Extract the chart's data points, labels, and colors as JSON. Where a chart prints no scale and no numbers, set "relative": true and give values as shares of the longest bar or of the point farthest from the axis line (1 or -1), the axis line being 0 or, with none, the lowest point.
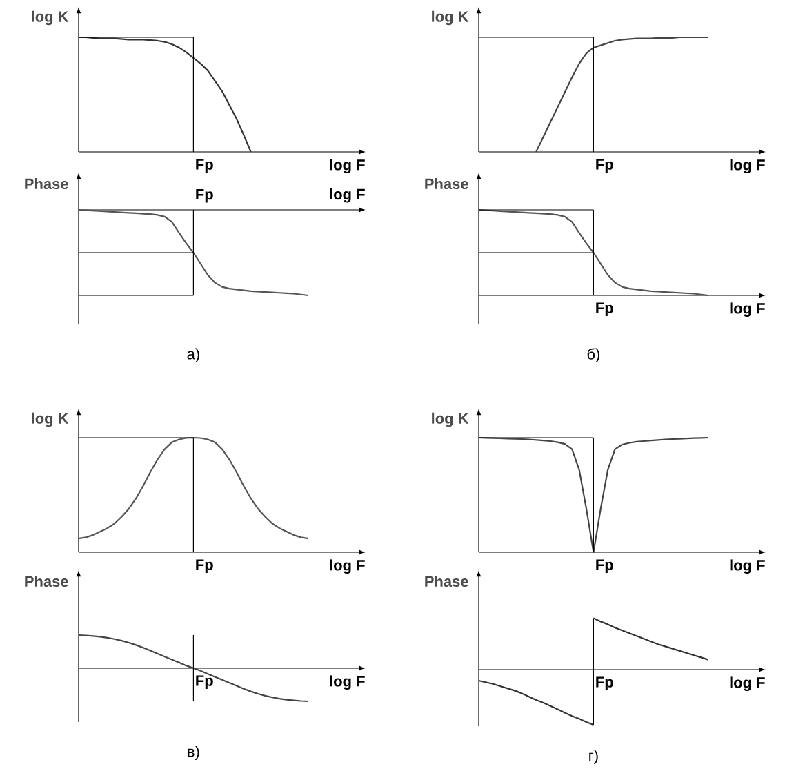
{
  "chart_data": [
    {
      "type": "line",
      "relative": true,
      "ylabel": "log K",
      "xlabel": "log F",
      "annotations": [
        "Fp"
      ],
      "categories": [
        null,
        null,
        null,
        null,
        null,
        null,
        null,
        null,
        null,
        null,
        null,
        null,
        null,
        null,
        null,
        null,
        null,
        null,
        null,
        null,
        null,
        null,
        null,
        null,
        null,
        null,
        null,
        null,
        null,
        null,
        null,
        null,
        null
      ],
      "ref_lines": [
        {
          "axis": "y",
          "value": 1
        }
      ],
      "series": [
        {
          "color": "#333333",
          "values": [
            1.0,
            1.0,
            0.995,
            0.99,
            0.99,
            0.99,
            0.985,
            0.98,
            0.98,
            0.98,
            0.975,
            0.97,
            0.96,
            0.94,
            0.91,
            0.87,
            0.82,
            0.77,
            0.71,
            0.62,
            0.53,
            0.41,
            0.29,
            0.15,
            0.0,
            null,
            null,
            null,
            null,
            null,
            null,
            null,
            null
          ]
        }
      ]
    },
    {
      "type": "line",
      "relative": true,
      "ylabel": "Phase",
      "xlabel": "log F",
      "annotations": [
        "Fp",
        "а)"
      ],
      "categories": [
        null,
        null,
        null,
        null,
        null,
        null,
        null,
        null,
        null,
        null,
        null,
        null,
        null,
        null,
        null,
        null,
        null,
        null,
        null,
        null,
        null,
        null,
        null,
        null,
        null,
        null,
        null,
        null,
        null,
        null,
        null,
        null,
        null
      ],
      "ref_lines": [
        {
          "axis": "y",
          "value": -0.5
        },
        {
          "axis": "y",
          "value": -1
        }
      ],
      "series": [
        {
          "color": "#555555",
          "values": [
            0,
            -0.005,
            -0.01,
            -0.015,
            -0.02,
            -0.025,
            -0.03,
            -0.035,
            -0.04,
            -0.045,
            -0.05,
            -0.06,
            -0.08,
            -0.14,
            -0.27,
            -0.39,
            -0.5,
            -0.63,
            -0.76,
            -0.85,
            -0.9,
            -0.92,
            -0.93,
            -0.94,
            -0.95,
            -0.955,
            -0.96,
            -0.965,
            -0.97,
            -0.975,
            -0.98,
            -0.99,
            -1.0
          ]
        }
      ]
    },
    {
      "type": "line",
      "relative": true,
      "ylabel": "log K",
      "xlabel": "log F",
      "annotations": [
        "Fp"
      ],
      "categories": [
        null,
        null,
        null,
        null,
        null,
        null,
        null,
        null,
        null,
        null,
        null,
        null,
        null,
        null,
        null,
        null,
        null,
        null,
        null,
        null,
        null,
        null,
        null,
        null,
        null,
        null,
        null,
        null,
        null,
        null,
        null,
        null,
        null
      ],
      "ref_lines": [
        {
          "axis": "y",
          "value": 1
        }
      ],
      "series": [
        {
          "color": "#444444",
          "values": [
            null,
            null,
            null,
            null,
            null,
            null,
            null,
            null,
            0,
            0.13,
            0.26,
            0.39,
            0.52,
            0.65,
            0.77,
            0.86,
            0.91,
            0.93,
            0.95,
            0.97,
            0.98,
            0.985,
            0.99,
            0.99,
            0.99,
            0.995,
            0.995,
            0.995,
            1.0,
            1.0,
            1.0,
            1.0,
            1.0
          ]
        }
      ]
    },
    {
      "type": "line",
      "relative": true,
      "ylabel": "Phase",
      "xlabel": "log F",
      "annotations": [
        "Fp",
        "б)"
      ],
      "categories": [
        null,
        null,
        null,
        null,
        null,
        null,
        null,
        null,
        null,
        null,
        null,
        null,
        null,
        null,
        null,
        null,
        null,
        null,
        null,
        null,
        null,
        null,
        null,
        null,
        null,
        null,
        null,
        null,
        null,
        null,
        null,
        null,
        null
      ],
      "ref_lines": [
        {
          "axis": "y",
          "value": 1
        },
        {
          "axis": "y",
          "value": 0.5
        }
      ],
      "series": [
        {
          "color": "#555555",
          "values": [
            1,
            0.995,
            0.99,
            0.985,
            0.98,
            0.975,
            0.97,
            0.965,
            0.96,
            0.955,
            0.95,
            0.94,
            0.92,
            0.86,
            0.73,
            0.61,
            0.5,
            0.37,
            0.24,
            0.15,
            0.1,
            0.08,
            0.07,
            0.06,
            0.05,
            0.045,
            0.04,
            0.035,
            0.03,
            0.025,
            0.02,
            0.01,
            0.0
          ]
        }
      ]
    },
    {
      "type": "line",
      "relative": true,
      "ylabel": "log K",
      "xlabel": "log F",
      "annotations": [
        "Fp"
      ],
      "categories": [
        null,
        null,
        null,
        null,
        null,
        null,
        null,
        null,
        null,
        null,
        null,
        null,
        null,
        null,
        null,
        null,
        null,
        null,
        null,
        null,
        null,
        null,
        null,
        null,
        null,
        null,
        null,
        null,
        null,
        null,
        null,
        null,
        null
      ],
      "ref_lines": [
        {
          "axis": "y",
          "value": 1
        }
      ],
      "series": [
        {
          "color": "#555555",
          "values": [
            0.12,
            0.13,
            0.15,
            0.18,
            0.21,
            0.25,
            0.31,
            0.38,
            0.47,
            0.58,
            0.7,
            0.81,
            0.9,
            0.96,
            0.985,
            0.997,
            1.0,
            0.997,
            0.985,
            0.96,
            0.9,
            0.81,
            0.7,
            0.58,
            0.47,
            0.38,
            0.31,
            0.25,
            0.21,
            0.18,
            0.15,
            0.13,
            0.12
          ]
        }
      ]
    },
    {
      "type": "line",
      "relative": true,
      "ylabel": "Phase",
      "xlabel": "log F",
      "annotations": [
        "Fp",
        "в)"
      ],
      "categories": [
        null,
        null,
        null,
        null,
        null,
        null,
        null,
        null,
        null,
        null,
        null,
        null,
        null,
        null,
        null,
        null,
        null,
        null,
        null,
        null,
        null,
        null,
        null,
        null,
        null,
        null,
        null,
        null,
        null,
        null,
        null,
        null,
        null
      ],
      "series": [
        {
          "color": "#444444",
          "values": [
            1.0,
            0.99,
            0.97,
            0.95,
            0.92,
            0.88,
            0.83,
            0.77,
            0.7,
            0.62,
            0.53,
            0.44,
            0.35,
            0.26,
            0.17,
            0.08,
            0,
            -0.08,
            -0.17,
            -0.26,
            -0.35,
            -0.44,
            -0.53,
            -0.62,
            -0.7,
            -0.77,
            -0.83,
            -0.88,
            -0.92,
            -0.95,
            -0.97,
            -0.99,
            -1.0
          ]
        }
      ]
    },
    {
      "type": "line",
      "relative": true,
      "ylabel": "log K",
      "xlabel": "log F",
      "annotations": [
        "Fp"
      ],
      "categories": [
        null,
        null,
        null,
        null,
        null,
        null,
        null,
        null,
        null,
        null,
        null,
        null,
        null,
        null,
        null,
        null,
        null,
        null,
        null,
        null,
        null,
        null,
        null,
        null,
        null,
        null,
        null,
        null,
        null,
        null,
        null,
        null,
        null
      ],
      "ref_lines": [
        {
          "axis": "y",
          "value": 1
        }
      ],
      "series": [
        {
          "color": "#444444",
          "values": [
            1.0,
            0.998,
            0.996,
            0.994,
            0.992,
            0.99,
            0.988,
            0.985,
            0.98,
            0.975,
            0.97,
            0.96,
            0.945,
            0.9,
            0.72,
            0.38,
            0,
            0.38,
            0.72,
            0.9,
            0.94,
            0.955,
            0.965,
            0.97,
            0.975,
            0.98,
            0.985,
            0.988,
            0.99,
            0.993,
            0.996,
            0.998,
            1.0
          ]
        }
      ]
    },
    {
      "type": "line",
      "relative": true,
      "ylabel": "Phase",
      "xlabel": "log F",
      "annotations": [
        "Fp",
        "г)"
      ],
      "categories": [
        null,
        null,
        null,
        null,
        null,
        null,
        null,
        null,
        null,
        null,
        null,
        null,
        null,
        null,
        null,
        null,
        null,
        null,
        null,
        null,
        null,
        null,
        null,
        null,
        null,
        null,
        null,
        null,
        null,
        null,
        null,
        null,
        null
      ],
      "series": [
        {
          "color": "#333333",
          "values": [
            -0.2,
            -0.23,
            -0.26,
            -0.3,
            -0.34,
            -0.38,
            -0.43,
            -0.49,
            -0.55,
            -0.6,
            -0.66,
            -0.72,
            -0.78,
            -0.84,
            -0.89,
            -0.95,
            -1.0,
            null,
            null,
            null,
            null,
            null,
            null,
            null,
            null,
            null,
            null,
            null,
            null,
            null,
            null,
            null,
            null
          ]
        },
        {
          "color": "#333333",
          "values": [
            null,
            null,
            null,
            null,
            null,
            null,
            null,
            null,
            null,
            null,
            null,
            null,
            null,
            null,
            null,
            null,
            0.93,
            0.87,
            0.82,
            0.76,
            0.71,
            0.66,
            0.61,
            0.56,
            0.51,
            0.46,
            0.42,
            0.38,
            0.34,
            0.3,
            0.26,
            0.22,
            0.18
          ]
        }
      ]
    }
  ]
}
